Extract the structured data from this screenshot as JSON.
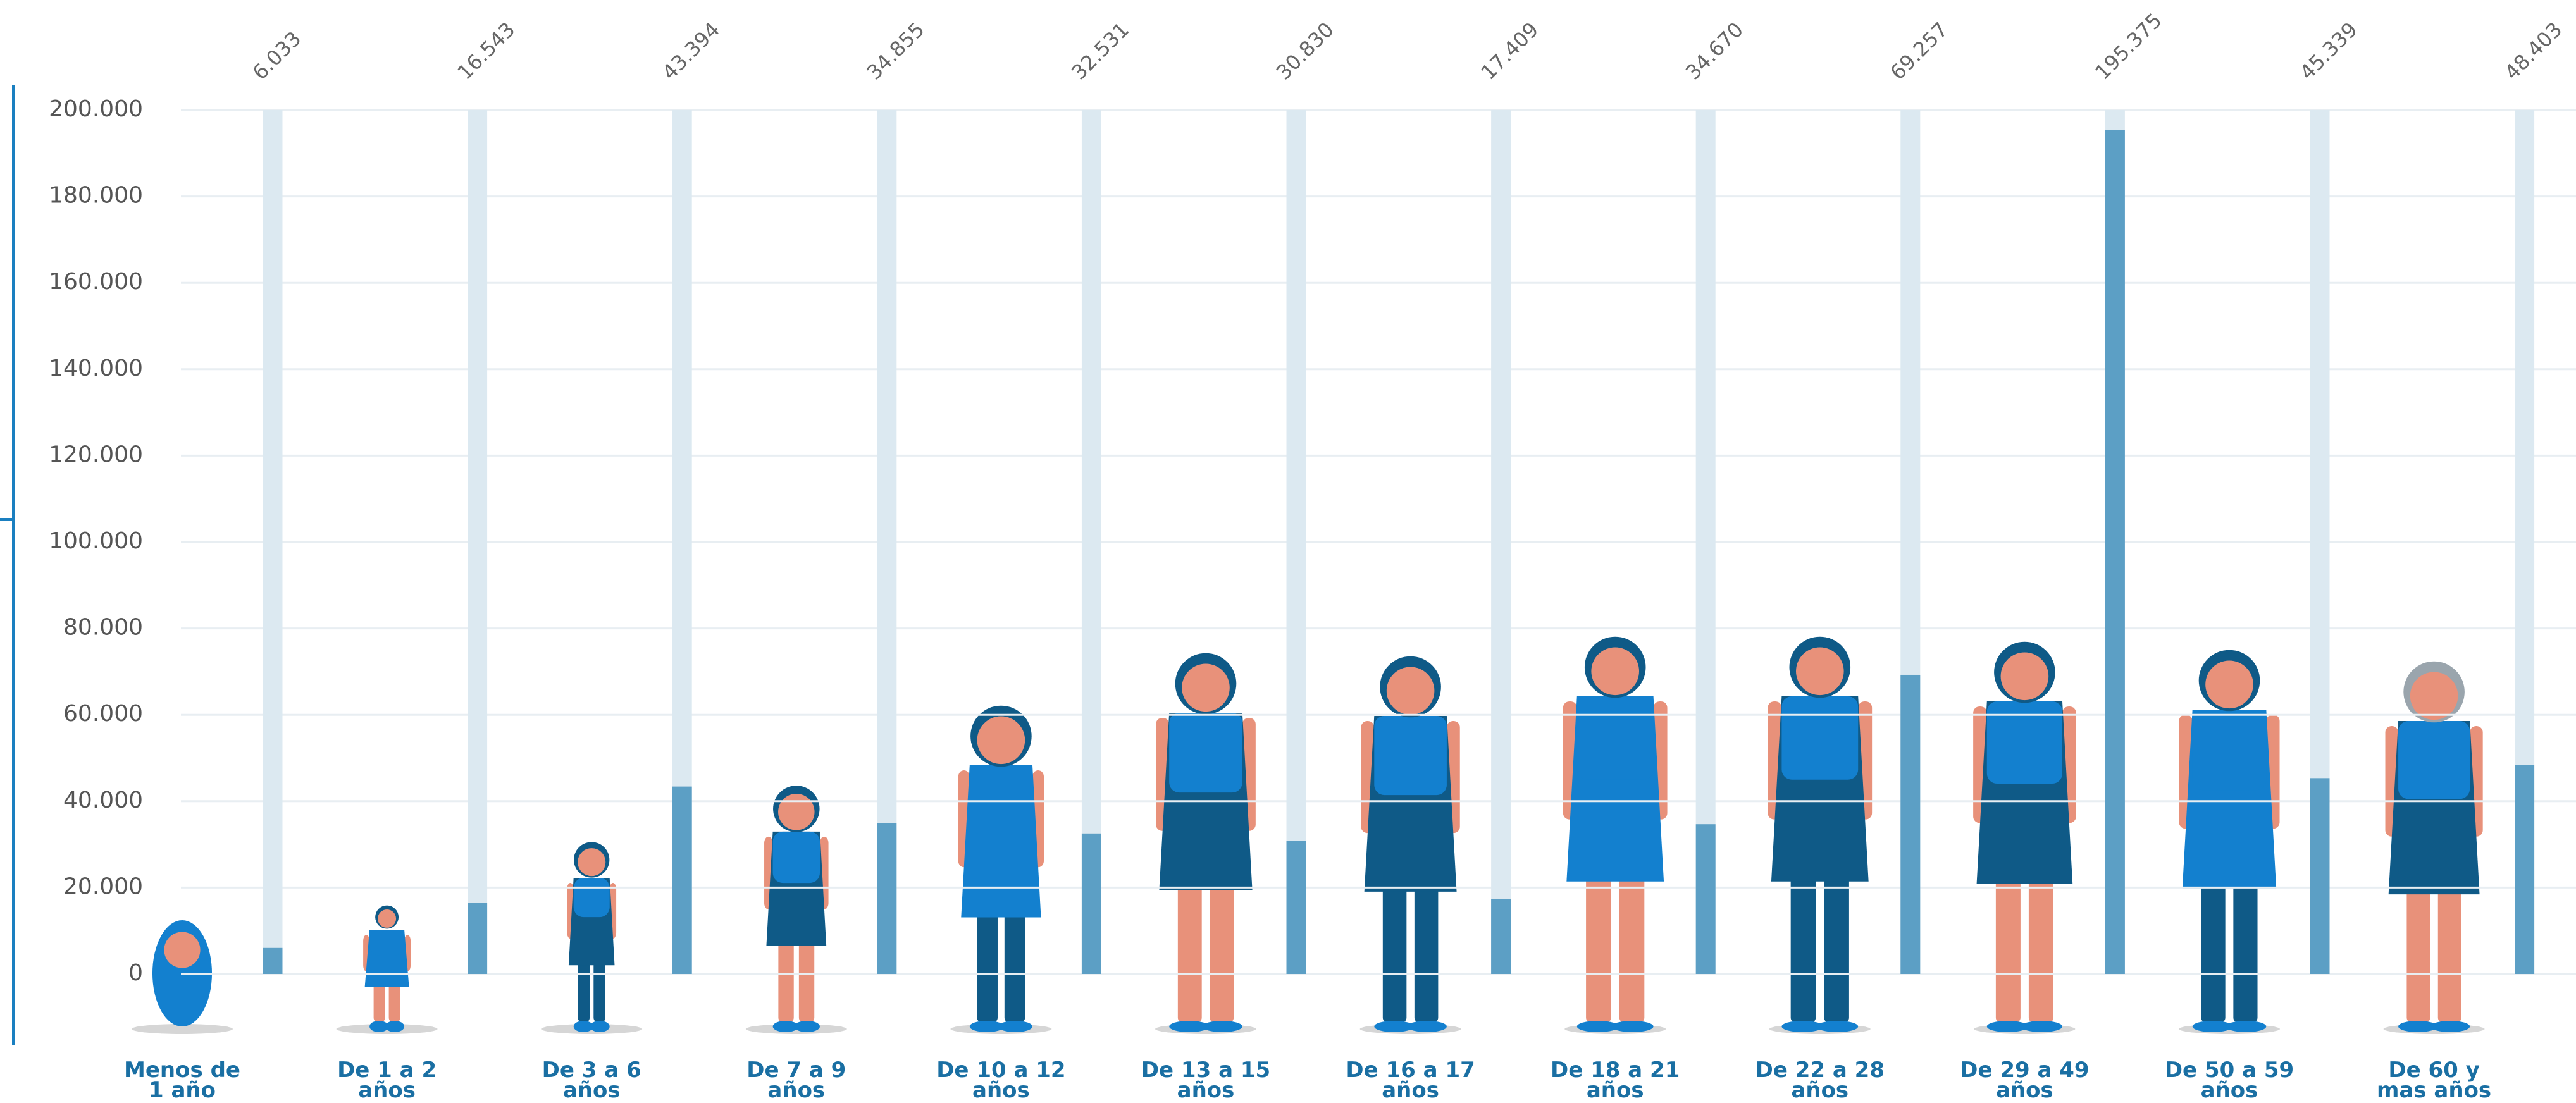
{
  "chart_data": {
    "type": "bar",
    "categories": [
      "Menos de\n1 año",
      "De 1 a 2\naños",
      "De 3 a 6\naños",
      "De 7 a 9\naños",
      "De 10 a 12\naños",
      "De 13 a 15\naños",
      "De 16 a 17\naños",
      "De 18 a 21\naños",
      "De 22 a 28\naños",
      "De 29 a 49\naños",
      "De 50 a 59\naños",
      "De 60 y\nmas años"
    ],
    "values": [
      6033,
      16543,
      43394,
      34855,
      32531,
      30830,
      17409,
      34670,
      69257,
      195375,
      45339,
      48403
    ],
    "value_labels": [
      "6.033",
      "16.543",
      "43.394",
      "34.855",
      "32.531",
      "30.830",
      "17.409",
      "34.670",
      "69.257",
      "195.375",
      "45.339",
      "48.403"
    ],
    "color": "#5c9fc5",
    "track_color": "#dce9f1",
    "ylim": [
      0,
      200000
    ],
    "yticks": [
      0,
      {
        "value": 20000,
        "label": "20.000"
      },
      {
        "value": 40000,
        "label": "40.000"
      },
      {
        "value": 60000,
        "label": "60.000"
      },
      {
        "value": 80000,
        "label": "80.000"
      },
      {
        "value": 100000,
        "label": "100.000"
      },
      {
        "value": 120000,
        "label": "120.000"
      },
      {
        "value": 140000,
        "label": "140.000"
      },
      {
        "value": 160000,
        "label": "160.000"
      },
      {
        "value": 180000,
        "label": "180.000"
      },
      {
        "value": 200000,
        "label": "200.000"
      }
    ],
    "grid": true
  }
}
